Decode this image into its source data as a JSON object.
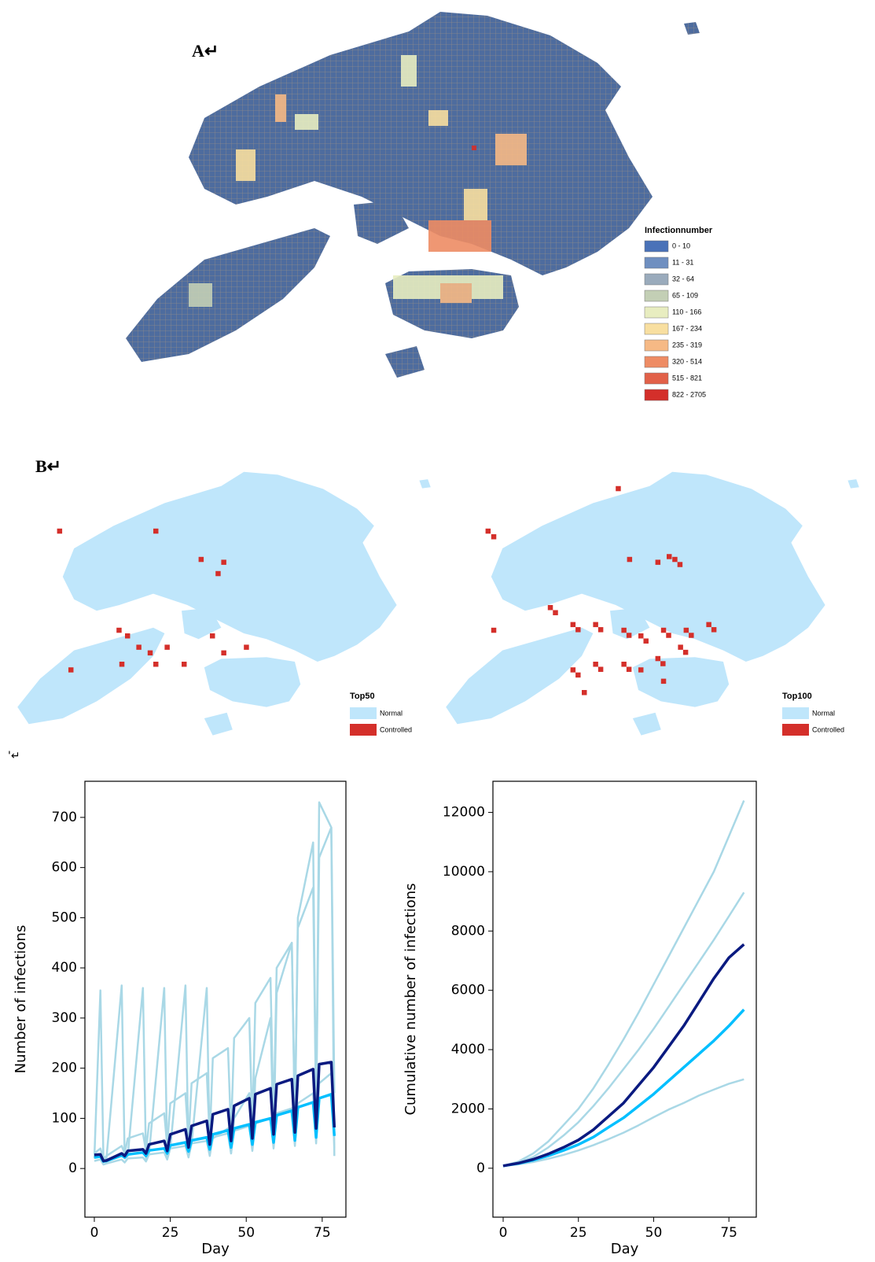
{
  "panel_a": {
    "label": "A↵",
    "legend_title": "Infectionnumber",
    "legend_items": [
      {
        "label": "0 - 10",
        "color": "#4a72b8"
      },
      {
        "label": "11 - 31",
        "color": "#6f8fc0"
      },
      {
        "label": "32 - 64",
        "color": "#9aabbc"
      },
      {
        "label": "65 - 109",
        "color": "#c3cfb5"
      },
      {
        "label": "110 - 166",
        "color": "#e8edc0"
      },
      {
        "label": "167 - 234",
        "color": "#f8dfa0"
      },
      {
        "label": "235 - 319",
        "color": "#f6b985"
      },
      {
        "label": "320 - 514",
        "color": "#ee8c64"
      },
      {
        "label": "515 - 821",
        "color": "#e26149"
      },
      {
        "label": "822 - 2705",
        "color": "#d42f2a"
      }
    ]
  },
  "panel_b": {
    "label": "B↵",
    "maps": [
      {
        "legend_title": "Top50",
        "items": [
          {
            "label": "Normal",
            "color": "#bfe6fb"
          },
          {
            "label": "Controlled",
            "color": "#d42f2a"
          }
        ]
      },
      {
        "legend_title": "Top100",
        "items": [
          {
            "label": "Normal",
            "color": "#bfe6fb"
          },
          {
            "label": "Controlled",
            "color": "#d42f2a"
          }
        ]
      }
    ],
    "trailing_mark": "'↵"
  },
  "chart_data": [
    {
      "type": "line",
      "x_label": "Day",
      "y_label": "Number of infections",
      "x": [
        0,
        2,
        3,
        4,
        9,
        10,
        11,
        16,
        17,
        18,
        23,
        24,
        25,
        30,
        31,
        32,
        37,
        38,
        39,
        44,
        45,
        46,
        51,
        52,
        53,
        58,
        59,
        60,
        65,
        66,
        67,
        72,
        73,
        74,
        78,
        79
      ],
      "xlim": [
        -3.1,
        82.8
      ],
      "xticks": [
        0,
        25,
        50,
        75
      ],
      "ylim": [
        -97,
        772
      ],
      "yticks": [
        0,
        100,
        200,
        300,
        400,
        500,
        600,
        700
      ],
      "series": [
        {
          "color": "#a9d8e6",
          "values": [
            20,
            355,
            15,
            20,
            365,
            20,
            25,
            360,
            20,
            30,
            360,
            25,
            40,
            365,
            25,
            50,
            360,
            30,
            60,
            80,
            30,
            100,
            150,
            40,
            180,
            300,
            50,
            350,
            450,
            80,
            500,
            650,
            100,
            730,
            680,
            150
          ]
        },
        {
          "color": "#a9d8e6",
          "values": [
            15,
            18,
            8,
            10,
            18,
            12,
            20,
            22,
            14,
            28,
            32,
            18,
            40,
            45,
            22,
            50,
            55,
            25,
            62,
            70,
            30,
            75,
            85,
            35,
            90,
            100,
            40,
            110,
            120,
            45,
            130,
            150,
            50,
            170,
            190,
            40
          ]
        },
        {
          "color": "#a9d8e6",
          "values": [
            30,
            40,
            20,
            25,
            45,
            30,
            60,
            70,
            35,
            90,
            110,
            45,
            130,
            150,
            55,
            170,
            190,
            60,
            220,
            240,
            70,
            260,
            300,
            80,
            330,
            380,
            90,
            400,
            450,
            100,
            480,
            560,
            110,
            620,
            680,
            25
          ]
        },
        {
          "color": "#00bfff",
          "values": [
            22,
            24,
            14,
            15,
            26,
            22,
            28,
            32,
            25,
            36,
            40,
            30,
            46,
            52,
            34,
            56,
            62,
            38,
            68,
            76,
            42,
            80,
            88,
            48,
            92,
            100,
            52,
            106,
            115,
            56,
            122,
            132,
            62,
            140,
            148,
            65
          ]
        },
        {
          "color": "#0a1a80",
          "values": [
            27,
            28,
            15,
            16,
            30,
            25,
            35,
            38,
            30,
            48,
            55,
            35,
            68,
            78,
            42,
            85,
            95,
            48,
            108,
            118,
            55,
            125,
            140,
            60,
            148,
            160,
            68,
            168,
            178,
            72,
            185,
            198,
            80,
            208,
            212,
            82
          ]
        }
      ]
    },
    {
      "type": "line",
      "x_label": "Day",
      "y_label": "Cumulative number of infections",
      "x": [
        0,
        5,
        10,
        15,
        20,
        25,
        30,
        35,
        40,
        45,
        50,
        55,
        60,
        65,
        70,
        75,
        80
      ],
      "xlim": [
        -3.4,
        84.1
      ],
      "xticks": [
        0,
        25,
        50,
        75
      ],
      "ylim": [
        -1650,
        13050
      ],
      "yticks": [
        0,
        2000,
        4000,
        6000,
        8000,
        10000,
        12000
      ],
      "series": [
        {
          "color": "#a9d8e6",
          "values": [
            80,
            220,
            500,
            900,
            1450,
            2000,
            2700,
            3500,
            4350,
            5250,
            6200,
            7150,
            8100,
            9050,
            10000,
            11200,
            12400
          ]
        },
        {
          "color": "#a9d8e6",
          "values": [
            80,
            180,
            380,
            700,
            1100,
            1550,
            2100,
            2700,
            3350,
            4000,
            4700,
            5450,
            6200,
            6950,
            7700,
            8500,
            9300
          ]
        },
        {
          "color": "#a9d8e6",
          "values": [
            80,
            130,
            210,
            320,
            450,
            600,
            780,
            980,
            1200,
            1450,
            1720,
            1980,
            2200,
            2450,
            2650,
            2850,
            3000
          ]
        },
        {
          "color": "#00bfff",
          "values": [
            80,
            160,
            270,
            420,
            600,
            800,
            1050,
            1380,
            1700,
            2100,
            2500,
            2950,
            3400,
            3850,
            4300,
            4800,
            5350
          ]
        },
        {
          "color": "#0a1a80",
          "values": [
            80,
            170,
            300,
            480,
            700,
            950,
            1300,
            1750,
            2200,
            2800,
            3400,
            4100,
            4800,
            5600,
            6400,
            7100,
            7550
          ]
        }
      ]
    }
  ]
}
